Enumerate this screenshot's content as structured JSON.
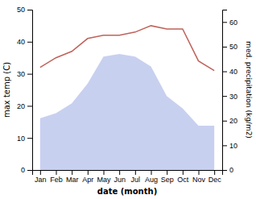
{
  "chart_data": {
    "type": "line",
    "categories": [
      "Jan",
      "Feb",
      "Mar",
      "Apr",
      "May",
      "Jun",
      "Jul",
      "Aug",
      "Sep",
      "Oct",
      "Nov",
      "Dec"
    ],
    "xlabel": "date (month)",
    "ylabel": "max temp (C)",
    "y2label": "med. precipitation (kg/m2)",
    "ylim": [
      0,
      50
    ],
    "yticks": [
      0,
      10,
      20,
      30,
      40,
      50
    ],
    "y2lim": [
      0,
      65
    ],
    "y2ticks": [
      0,
      10,
      20,
      30,
      40,
      50,
      60
    ],
    "series": [
      {
        "type": "area",
        "axis": "y2",
        "color": "#c8d0f0",
        "values": [
          21,
          23,
          27,
          35,
          46,
          47,
          46,
          42,
          30,
          25,
          18,
          18
        ]
      },
      {
        "type": "line",
        "color": "#c0625a",
        "values": [
          32,
          35,
          37,
          41,
          42,
          42,
          43,
          45,
          44,
          44,
          34,
          31
        ]
      }
    ]
  }
}
